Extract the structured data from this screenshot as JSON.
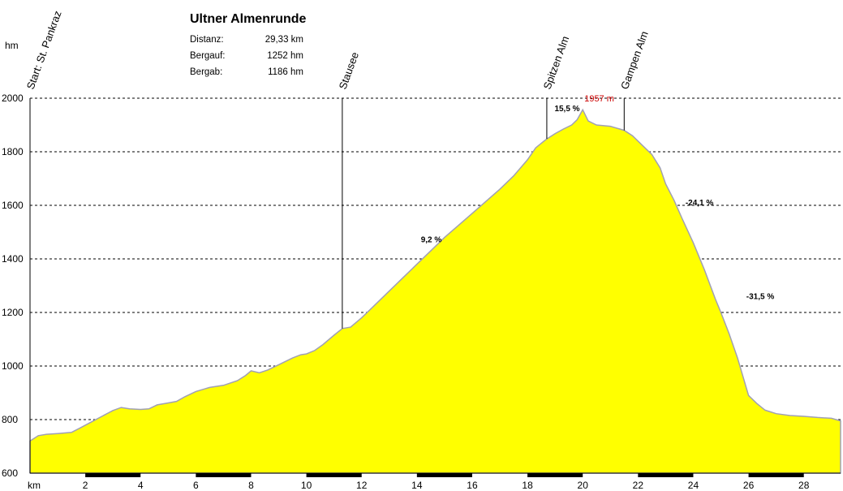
{
  "chart_data": {
    "type": "area",
    "title": "Ultner Almenrunde",
    "ylabel": "hm",
    "xlabel": "km",
    "xlim": [
      0,
      29.33
    ],
    "ylim": [
      600,
      2000
    ],
    "x_ticks": [
      2,
      4,
      6,
      8,
      10,
      12,
      14,
      16,
      18,
      20,
      22,
      24,
      26,
      28
    ],
    "y_ticks": [
      600,
      800,
      1000,
      1200,
      1400,
      1600,
      1800,
      2000
    ],
    "grid": "horizontal dashed",
    "fill_color": "#ffff00",
    "line_color": "#a0a0b4",
    "stats": [
      {
        "label": "Distanz:",
        "value": "29,33 km"
      },
      {
        "label": "Bergauf:",
        "value": "1252 hm"
      },
      {
        "label": "Bergab:",
        "value": "1186 hm"
      }
    ],
    "x": [
      0,
      0.3,
      0.6,
      1.0,
      1.5,
      1.8,
      2.2,
      2.6,
      3.0,
      3.3,
      3.6,
      4.0,
      4.3,
      4.6,
      5.0,
      5.3,
      5.6,
      6.0,
      6.5,
      7.0,
      7.5,
      7.8,
      8.0,
      8.3,
      8.6,
      9.0,
      9.5,
      9.8,
      10.0,
      10.3,
      10.6,
      11.0,
      11.3,
      11.6,
      12.0,
      12.5,
      13.0,
      13.5,
      14.0,
      14.5,
      15.0,
      15.5,
      16.0,
      16.5,
      17.0,
      17.5,
      18.0,
      18.3,
      18.6,
      18.7,
      19.0,
      19.3,
      19.6,
      19.8,
      20.0,
      20.2,
      20.5,
      21.0,
      21.5,
      21.8,
      22.2,
      22.5,
      22.8,
      23.0,
      23.3,
      23.6,
      24.0,
      24.4,
      24.8,
      25.0,
      25.3,
      25.6,
      26.0,
      26.3,
      26.6,
      27.0,
      27.5,
      28.0,
      28.5,
      29.0,
      29.33
    ],
    "y": [
      720,
      740,
      745,
      748,
      752,
      768,
      790,
      812,
      834,
      845,
      840,
      838,
      840,
      855,
      862,
      868,
      885,
      905,
      920,
      928,
      945,
      965,
      982,
      975,
      985,
      1005,
      1030,
      1042,
      1045,
      1058,
      1080,
      1115,
      1140,
      1145,
      1180,
      1230,
      1280,
      1330,
      1380,
      1430,
      1480,
      1525,
      1570,
      1615,
      1660,
      1710,
      1770,
      1815,
      1840,
      1848,
      1868,
      1885,
      1900,
      1920,
      1957,
      1915,
      1900,
      1895,
      1880,
      1860,
      1820,
      1790,
      1740,
      1680,
      1620,
      1550,
      1460,
      1360,
      1250,
      1200,
      1120,
      1030,
      890,
      860,
      835,
      822,
      815,
      812,
      808,
      805,
      795
    ],
    "waypoints": [
      {
        "label": "Start: St. Pankraz",
        "x": 0
      },
      {
        "label": "Stausee",
        "x": 11.3
      },
      {
        "label": "Spitzen Alm",
        "x": 18.7
      },
      {
        "label": "Gampen Alm",
        "x": 21.5
      }
    ],
    "annotations": [
      {
        "text": "1957 m",
        "x": 20.0,
        "y": 1957,
        "kind": "peak"
      },
      {
        "text": "15,5 %",
        "x": 19.6,
        "y": 1940,
        "kind": "gradient"
      },
      {
        "text": "9,2 %",
        "x": 14.6,
        "y": 1450,
        "kind": "gradient"
      },
      {
        "text": "-24,1 %",
        "x": 23.6,
        "y": 1600,
        "kind": "gradient"
      },
      {
        "text": "-31,5 %",
        "x": 25.8,
        "y": 1250,
        "kind": "gradient"
      }
    ]
  }
}
